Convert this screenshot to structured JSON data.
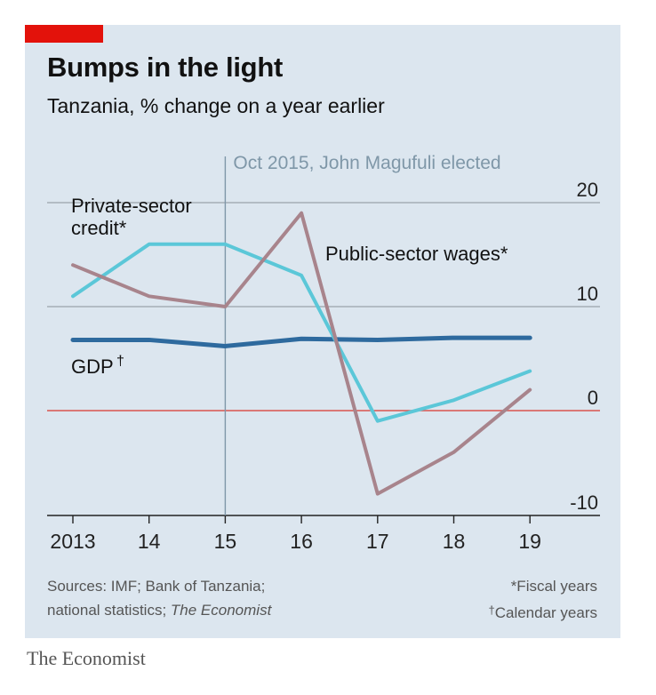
{
  "title": "Bumps in the light",
  "subtitle": "Tanzania, % change on a year earlier",
  "colors": {
    "panel": "#dce6ef",
    "red_tab": "#e3120b",
    "private_credit": "#5bc7d8",
    "public_wages": "#a8848c",
    "gdp": "#2e6a9e",
    "zero_line": "#d9534f",
    "grid": "#9aa3ab",
    "annotation": "#7f97a8"
  },
  "annotation": "Oct 2015, John Magufuli elected",
  "series_labels": {
    "private_credit_line1": "Private-sector",
    "private_credit_line2": "credit*",
    "public_wages": "Public-sector wages*",
    "gdp": "GDP",
    "gdp_mark": "†"
  },
  "source": {
    "line1": "Sources: IMF; Bank of Tanzania;",
    "line2_prefix": "national statistics; ",
    "line2_italic": "The Economist"
  },
  "notes": {
    "fiscal": "*Fiscal years",
    "calendar_mark": "†",
    "calendar": "Calendar years"
  },
  "logo": "The Economist",
  "chart_data": {
    "type": "line",
    "x": [
      2013,
      2014,
      2015,
      2016,
      2017,
      2018,
      2019
    ],
    "x_tick_labels": [
      "2013",
      "14",
      "15",
      "16",
      "17",
      "18",
      "19"
    ],
    "y_ticks": [
      -10,
      0,
      10,
      20
    ],
    "y_tick_labels": [
      "-10",
      "0",
      "10",
      "20"
    ],
    "ylim": [
      -10,
      20
    ],
    "series": [
      {
        "key": "private_credit",
        "values": [
          11,
          16,
          16,
          13,
          -1,
          1,
          3.8
        ]
      },
      {
        "key": "public_wages",
        "values": [
          14,
          11,
          10,
          19,
          -8,
          -4,
          2
        ]
      },
      {
        "key": "gdp",
        "values": [
          6.8,
          6.8,
          6.2,
          6.9,
          6.8,
          7.0,
          7.0
        ]
      }
    ],
    "annotation_x": 2015,
    "grid": true
  }
}
